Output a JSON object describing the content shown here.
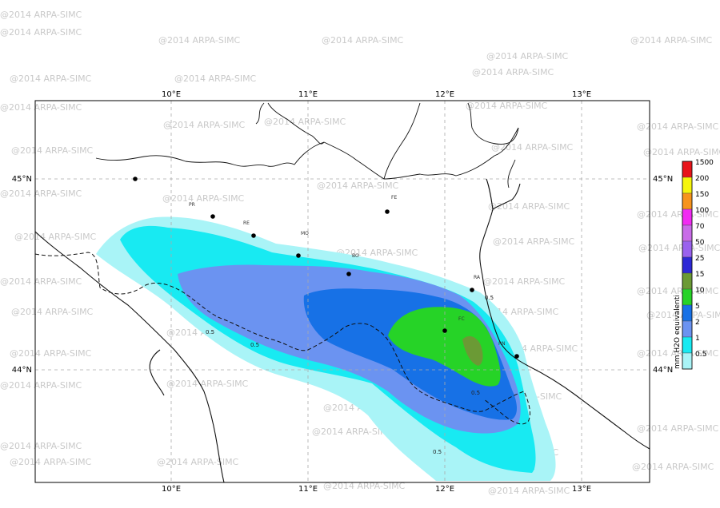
{
  "watermark": "@2014 ARPA-SIMC",
  "axes": {
    "lon_ticks": [
      "10°E",
      "11°E",
      "12°E",
      "13°E"
    ],
    "lat_ticks": [
      "45°N",
      "44°N"
    ]
  },
  "cities": [
    "PR",
    "RE",
    "MO",
    "BO",
    "FE",
    "RA",
    "FC",
    "RN"
  ],
  "contour_labels": [
    "0.5",
    "0.5",
    "0.5",
    "0.5",
    "0.5"
  ],
  "legend": {
    "title": "mm H2O equivalenti",
    "items": [
      {
        "label": "1500",
        "color": "#e8141a"
      },
      {
        "label": "200",
        "color": "#f6f50c"
      },
      {
        "label": "150",
        "color": "#f7941d"
      },
      {
        "label": "100",
        "color": "#f12bf2"
      },
      {
        "label": "70",
        "color": "#c96ce8"
      },
      {
        "label": "50",
        "color": "#9a62ee"
      },
      {
        "label": "25",
        "color": "#2d28d6"
      },
      {
        "label": "15",
        "color": "#6b9a35"
      },
      {
        "label": "10",
        "color": "#26d327"
      },
      {
        "label": "5",
        "color": "#1771e6"
      },
      {
        "label": "2",
        "color": "#6b93f1"
      },
      {
        "label": "1",
        "color": "#18eaf2"
      },
      {
        "label": "0.5",
        "color": "#a9f4f7"
      }
    ]
  }
}
